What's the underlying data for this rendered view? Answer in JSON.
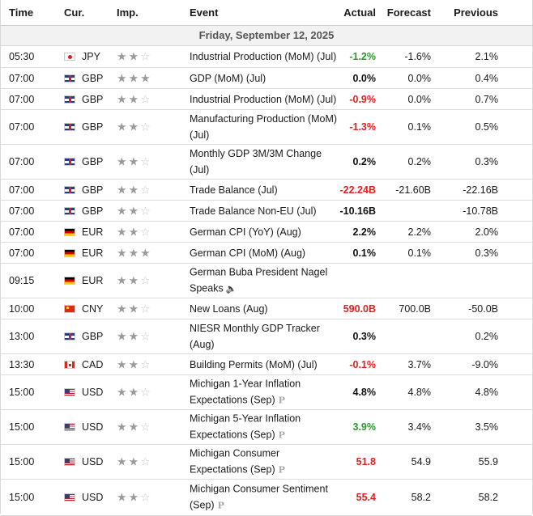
{
  "headers": {
    "time": "Time",
    "currency": "Cur.",
    "importance": "Imp.",
    "event": "Event",
    "actual": "Actual",
    "forecast": "Forecast",
    "previous": "Previous"
  },
  "date_label": "Friday, September 12, 2025",
  "colors": {
    "red": "#e02020",
    "green": "#2a9a2a"
  },
  "rows": [
    {
      "time": "05:30",
      "flag": "jpy",
      "cur": "JPY",
      "stars": 2,
      "event": "Industrial Production (MoM) (Jul)",
      "actual": "-1.2%",
      "actual_color": "green",
      "forecast": "-1.6%",
      "previous": "2.1%"
    },
    {
      "time": "07:00",
      "flag": "gbp",
      "cur": "GBP",
      "stars": 3,
      "event": "GDP (MoM) (Jul)",
      "actual": "0.0%",
      "actual_color": "black",
      "forecast": "0.0%",
      "previous": "0.4%"
    },
    {
      "time": "07:00",
      "flag": "gbp",
      "cur": "GBP",
      "stars": 2,
      "event": "Industrial Production (MoM) (Jul)",
      "actual": "-0.9%",
      "actual_color": "red",
      "forecast": "0.0%",
      "previous": "0.7%"
    },
    {
      "time": "07:00",
      "flag": "gbp",
      "cur": "GBP",
      "stars": 2,
      "event": "Manufacturing Production (MoM) (Jul)",
      "actual": "-1.3%",
      "actual_color": "red",
      "forecast": "0.1%",
      "previous": "0.5%"
    },
    {
      "time": "07:00",
      "flag": "gbp",
      "cur": "GBP",
      "stars": 2,
      "event": "Monthly GDP 3M/3M Change (Jul)",
      "actual": "0.2%",
      "actual_color": "black",
      "forecast": "0.2%",
      "previous": "0.3%"
    },
    {
      "time": "07:00",
      "flag": "gbp",
      "cur": "GBP",
      "stars": 2,
      "event": "Trade Balance (Jul)",
      "actual": "-22.24B",
      "actual_color": "red",
      "forecast": "-21.60B",
      "previous": "-22.16B"
    },
    {
      "time": "07:00",
      "flag": "gbp",
      "cur": "GBP",
      "stars": 2,
      "event": "Trade Balance Non-EU (Jul)",
      "actual": "-10.16B",
      "actual_color": "black",
      "forecast": "",
      "previous": "-10.78B"
    },
    {
      "time": "07:00",
      "flag": "eur",
      "cur": "EUR",
      "stars": 2,
      "event": "German CPI (YoY) (Aug)",
      "actual": "2.2%",
      "actual_color": "black",
      "forecast": "2.2%",
      "previous": "2.0%"
    },
    {
      "time": "07:00",
      "flag": "eur",
      "cur": "EUR",
      "stars": 3,
      "event": "German CPI (MoM) (Aug)",
      "actual": "0.1%",
      "actual_color": "black",
      "forecast": "0.1%",
      "previous": "0.3%"
    },
    {
      "time": "09:15",
      "flag": "eur",
      "cur": "EUR",
      "stars": 2,
      "event": "German Buba President Nagel Speaks",
      "speech": true,
      "actual": "",
      "actual_color": "black",
      "forecast": "",
      "previous": ""
    },
    {
      "time": "10:00",
      "flag": "cny",
      "cur": "CNY",
      "stars": 2,
      "event": "New Loans (Aug)",
      "actual": "590.0B",
      "actual_color": "red",
      "forecast": "700.0B",
      "previous": "-50.0B"
    },
    {
      "time": "13:00",
      "flag": "gbp",
      "cur": "GBP",
      "stars": 2,
      "event": "NIESR Monthly GDP Tracker (Aug)",
      "actual": "0.3%",
      "actual_color": "black",
      "forecast": "",
      "previous": "0.2%"
    },
    {
      "time": "13:30",
      "flag": "cad",
      "cur": "CAD",
      "stars": 2,
      "event": "Building Permits (MoM) (Jul)",
      "actual": "-0.1%",
      "actual_color": "red",
      "forecast": "3.7%",
      "previous": "-9.0%"
    },
    {
      "time": "15:00",
      "flag": "usd",
      "cur": "USD",
      "stars": 2,
      "event": "Michigan 1-Year Inflation Expectations (Sep)",
      "prelim": true,
      "actual": "4.8%",
      "actual_color": "black",
      "forecast": "4.8%",
      "previous": "4.8%"
    },
    {
      "time": "15:00",
      "flag": "usd",
      "cur": "USD",
      "stars": 2,
      "event": "Michigan 5-Year Inflation Expectations (Sep)",
      "prelim": true,
      "actual": "3.9%",
      "actual_color": "green",
      "forecast": "3.4%",
      "previous": "3.5%"
    },
    {
      "time": "15:00",
      "flag": "usd",
      "cur": "USD",
      "stars": 2,
      "event": "Michigan Consumer Expectations (Sep)",
      "prelim": true,
      "actual": "51.8",
      "actual_color": "red",
      "forecast": "54.9",
      "previous": "55.9"
    },
    {
      "time": "15:00",
      "flag": "usd",
      "cur": "USD",
      "stars": 2,
      "event": "Michigan Consumer Sentiment (Sep)",
      "prelim": true,
      "actual": "55.4",
      "actual_color": "red",
      "forecast": "58.2",
      "previous": "58.2"
    }
  ],
  "preliminary_mark": "P",
  "speech_icon": "speaker-icon"
}
